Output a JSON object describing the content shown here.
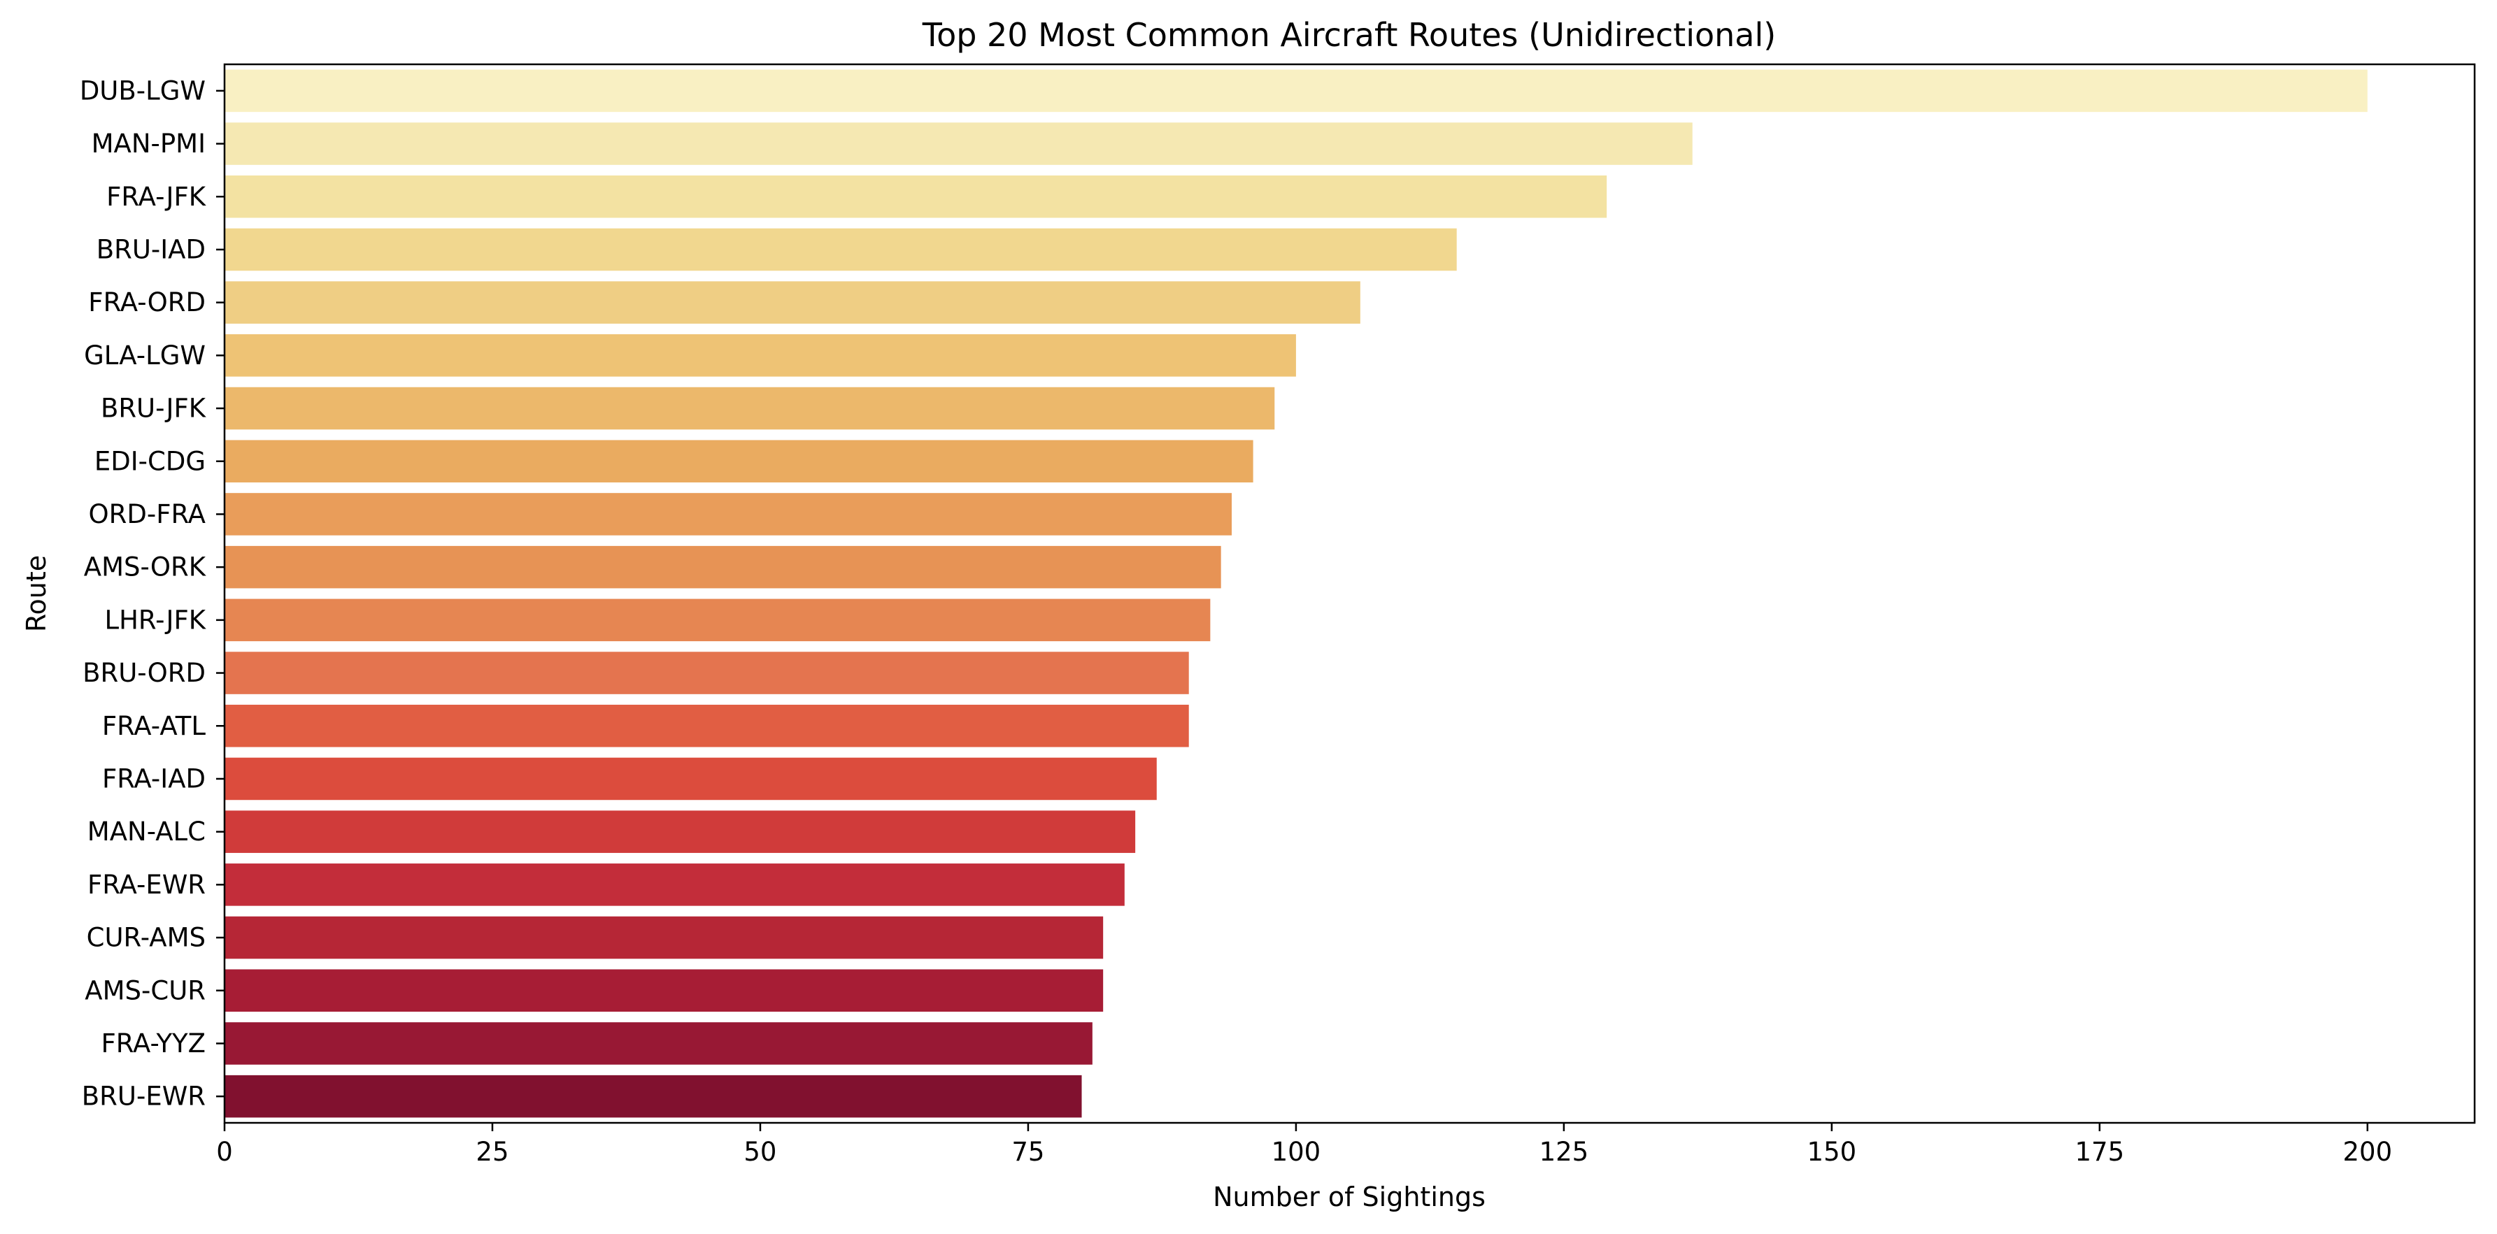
{
  "chart_data": {
    "type": "bar",
    "orientation": "horizontal",
    "title": "Top 20 Most Common Aircraft Routes (Unidirectional)",
    "xlabel": "Number of Sightings",
    "ylabel": "Route",
    "xlim": [
      0,
      210
    ],
    "xticks": [
      0,
      25,
      50,
      75,
      100,
      125,
      150,
      175,
      200
    ],
    "grid": false,
    "categories": [
      "DUB-LGW",
      "MAN-PMI",
      "FRA-JFK",
      "BRU-IAD",
      "FRA-ORD",
      "GLA-LGW",
      "BRU-JFK",
      "EDI-CDG",
      "ORD-FRA",
      "AMS-ORK",
      "LHR-JFK",
      "BRU-ORD",
      "FRA-ATL",
      "FRA-IAD",
      "MAN-ALC",
      "FRA-EWR",
      "CUR-AMS",
      "AMS-CUR",
      "FRA-YYZ",
      "BRU-EWR"
    ],
    "values": [
      200,
      137,
      129,
      115,
      106,
      100,
      98,
      96,
      94,
      93,
      92,
      90,
      90,
      87,
      85,
      84,
      82,
      82,
      81,
      80
    ],
    "colors": [
      "#f9f0c3",
      "#f5e8b2",
      "#f3e2a2",
      "#f1d78f",
      "#efce84",
      "#eec375",
      "#ecb86b",
      "#eaab60",
      "#e99d5a",
      "#e79355",
      "#e68652",
      "#e4744f",
      "#e15e43",
      "#dc4c3d",
      "#d03b3a",
      "#c32d3a",
      "#b62636",
      "#a71d35",
      "#981834",
      "#81112f"
    ]
  }
}
